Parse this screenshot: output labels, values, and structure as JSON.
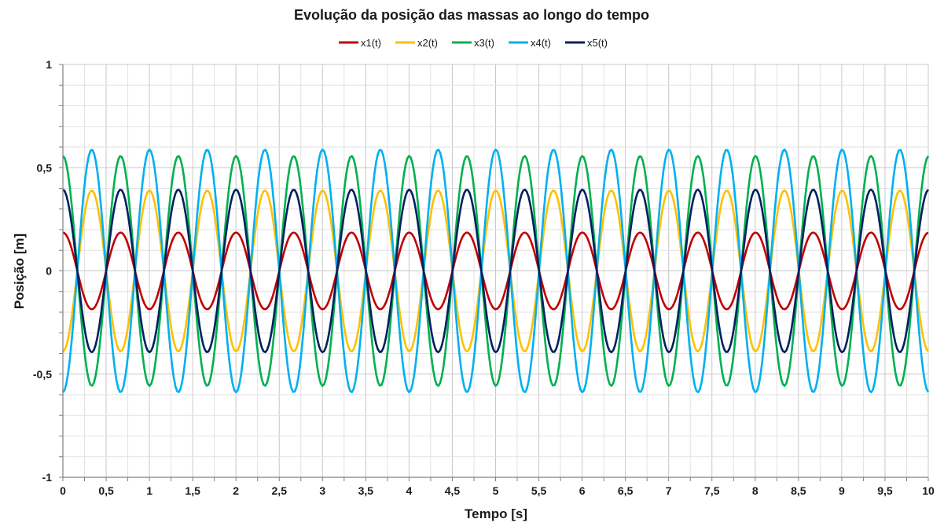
{
  "chart_data": {
    "type": "line",
    "title": "Evolução da posição das massas ao longo do tempo",
    "xlabel": "Tempo [s]",
    "ylabel": "Posição [m]",
    "xlim": [
      0,
      10
    ],
    "ylim": [
      -1,
      1
    ],
    "x_ticks": [
      "0",
      "0,5",
      "1",
      "1,5",
      "2",
      "2,5",
      "3",
      "3,5",
      "4",
      "4,5",
      "5",
      "5,5",
      "6",
      "6,5",
      "7",
      "7,5",
      "8",
      "8,5",
      "9",
      "9,5",
      "10"
    ],
    "y_ticks": [
      "-1",
      "-0,5",
      "0",
      "0,5",
      "1"
    ],
    "grid": true,
    "legend": "top-center",
    "time_step": 0.02,
    "period": 0.667,
    "series": [
      {
        "name": "x1(t)",
        "color": "#c00000",
        "amplitude": 0.186,
        "phase_sign": 1,
        "start_value": 0.186
      },
      {
        "name": "x2(t)",
        "color": "#ffc000",
        "amplitude": 0.39,
        "phase_sign": -1,
        "start_value": -0.39
      },
      {
        "name": "x3(t)",
        "color": "#00b050",
        "amplitude": 0.557,
        "phase_sign": 1,
        "start_value": 0.557
      },
      {
        "name": "x4(t)",
        "color": "#00b0f0",
        "amplitude": 0.588,
        "phase_sign": -1,
        "start_value": -0.588
      },
      {
        "name": "x5(t)",
        "color": "#002060",
        "amplitude": 0.394,
        "phase_sign": 1,
        "start_value": 0.394
      }
    ]
  }
}
